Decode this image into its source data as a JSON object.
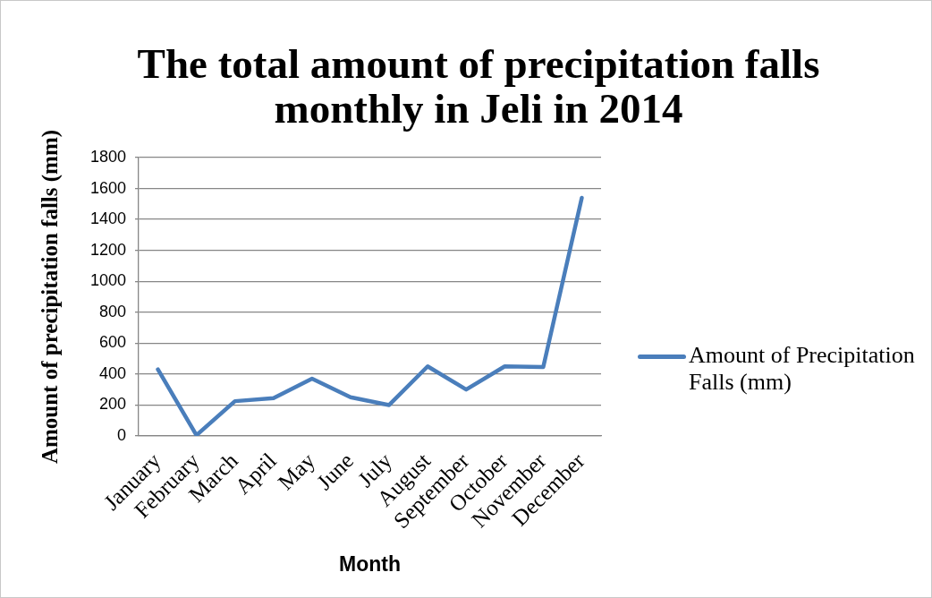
{
  "chart_data": {
    "type": "line",
    "title": "The total amount of precipitation falls monthly in Jeli in 2014",
    "xlabel": "Month",
    "ylabel": "Amount of precipitation falls (mm)",
    "categories": [
      "January",
      "February",
      "March",
      "April",
      "May",
      "June",
      "July",
      "August",
      "September",
      "October",
      "November",
      "December"
    ],
    "series": [
      {
        "name": "Amount of Precipitation Falls (mm)",
        "color": "#4a7ebb",
        "values": [
          430,
          5,
          225,
          245,
          370,
          250,
          200,
          450,
          300,
          450,
          445,
          1540
        ]
      }
    ],
    "ylim": [
      0,
      1800
    ],
    "yticks": [
      0,
      200,
      400,
      600,
      800,
      1000,
      1200,
      1400,
      1600,
      1800
    ],
    "grid": "y",
    "legend": "right",
    "marker": "none",
    "line_style": "solid"
  }
}
